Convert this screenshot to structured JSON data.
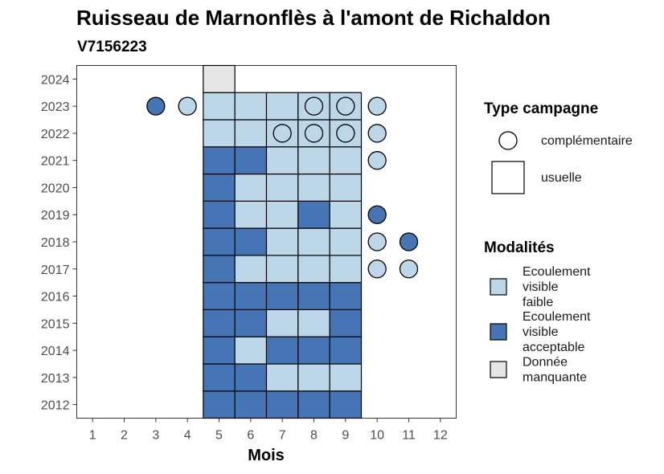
{
  "chart_data": {
    "type": "heatmap",
    "title": "Ruisseau de Marnonflès à l'amont de Richaldon",
    "subtitle": "V7156223",
    "xlabel": "Mois",
    "ylabel": "",
    "x_ticks": [
      "1",
      "2",
      "3",
      "4",
      "5",
      "6",
      "7",
      "8",
      "9",
      "10",
      "11",
      "12"
    ],
    "y_ticks": [
      "2012",
      "2013",
      "2014",
      "2015",
      "2016",
      "2017",
      "2018",
      "2019",
      "2020",
      "2021",
      "2022",
      "2023",
      "2024"
    ],
    "xlim": [
      0.5,
      12.5
    ],
    "ylim": [
      2011.5,
      2024.5
    ],
    "colors": {
      "faible": "#bcd7e8",
      "acceptable": "#4575b4",
      "manquante": "#e6e6e6"
    },
    "observations": [
      {
        "year": 2012,
        "month": 5,
        "campagne": "usuelle",
        "modalite": "acceptable"
      },
      {
        "year": 2012,
        "month": 6,
        "campagne": "usuelle",
        "modalite": "acceptable"
      },
      {
        "year": 2012,
        "month": 7,
        "campagne": "usuelle",
        "modalite": "acceptable"
      },
      {
        "year": 2012,
        "month": 8,
        "campagne": "usuelle",
        "modalite": "acceptable"
      },
      {
        "year": 2012,
        "month": 9,
        "campagne": "usuelle",
        "modalite": "acceptable"
      },
      {
        "year": 2013,
        "month": 5,
        "campagne": "usuelle",
        "modalite": "acceptable"
      },
      {
        "year": 2013,
        "month": 6,
        "campagne": "usuelle",
        "modalite": "acceptable"
      },
      {
        "year": 2013,
        "month": 7,
        "campagne": "usuelle",
        "modalite": "faible"
      },
      {
        "year": 2013,
        "month": 8,
        "campagne": "usuelle",
        "modalite": "faible"
      },
      {
        "year": 2013,
        "month": 9,
        "campagne": "usuelle",
        "modalite": "faible"
      },
      {
        "year": 2014,
        "month": 5,
        "campagne": "usuelle",
        "modalite": "acceptable"
      },
      {
        "year": 2014,
        "month": 6,
        "campagne": "usuelle",
        "modalite": "faible"
      },
      {
        "year": 2014,
        "month": 7,
        "campagne": "usuelle",
        "modalite": "acceptable"
      },
      {
        "year": 2014,
        "month": 8,
        "campagne": "usuelle",
        "modalite": "acceptable"
      },
      {
        "year": 2014,
        "month": 9,
        "campagne": "usuelle",
        "modalite": "acceptable"
      },
      {
        "year": 2015,
        "month": 5,
        "campagne": "usuelle",
        "modalite": "acceptable"
      },
      {
        "year": 2015,
        "month": 6,
        "campagne": "usuelle",
        "modalite": "acceptable"
      },
      {
        "year": 2015,
        "month": 7,
        "campagne": "usuelle",
        "modalite": "faible"
      },
      {
        "year": 2015,
        "month": 8,
        "campagne": "usuelle",
        "modalite": "faible"
      },
      {
        "year": 2015,
        "month": 9,
        "campagne": "usuelle",
        "modalite": "acceptable"
      },
      {
        "year": 2016,
        "month": 5,
        "campagne": "usuelle",
        "modalite": "acceptable"
      },
      {
        "year": 2016,
        "month": 6,
        "campagne": "usuelle",
        "modalite": "acceptable"
      },
      {
        "year": 2016,
        "month": 7,
        "campagne": "usuelle",
        "modalite": "acceptable"
      },
      {
        "year": 2016,
        "month": 8,
        "campagne": "usuelle",
        "modalite": "acceptable"
      },
      {
        "year": 2016,
        "month": 9,
        "campagne": "usuelle",
        "modalite": "acceptable"
      },
      {
        "year": 2017,
        "month": 5,
        "campagne": "usuelle",
        "modalite": "acceptable"
      },
      {
        "year": 2017,
        "month": 6,
        "campagne": "usuelle",
        "modalite": "faible"
      },
      {
        "year": 2017,
        "month": 7,
        "campagne": "usuelle",
        "modalite": "faible"
      },
      {
        "year": 2017,
        "month": 8,
        "campagne": "usuelle",
        "modalite": "faible"
      },
      {
        "year": 2017,
        "month": 9,
        "campagne": "usuelle",
        "modalite": "faible"
      },
      {
        "year": 2017,
        "month": 10,
        "campagne": "complémentaire",
        "modalite": "faible"
      },
      {
        "year": 2017,
        "month": 11,
        "campagne": "complémentaire",
        "modalite": "faible"
      },
      {
        "year": 2018,
        "month": 5,
        "campagne": "usuelle",
        "modalite": "acceptable"
      },
      {
        "year": 2018,
        "month": 6,
        "campagne": "usuelle",
        "modalite": "acceptable"
      },
      {
        "year": 2018,
        "month": 7,
        "campagne": "usuelle",
        "modalite": "faible"
      },
      {
        "year": 2018,
        "month": 8,
        "campagne": "usuelle",
        "modalite": "faible"
      },
      {
        "year": 2018,
        "month": 9,
        "campagne": "usuelle",
        "modalite": "faible"
      },
      {
        "year": 2018,
        "month": 10,
        "campagne": "complémentaire",
        "modalite": "faible"
      },
      {
        "year": 2018,
        "month": 11,
        "campagne": "complémentaire",
        "modalite": "acceptable"
      },
      {
        "year": 2019,
        "month": 5,
        "campagne": "usuelle",
        "modalite": "acceptable"
      },
      {
        "year": 2019,
        "month": 6,
        "campagne": "usuelle",
        "modalite": "faible"
      },
      {
        "year": 2019,
        "month": 7,
        "campagne": "usuelle",
        "modalite": "faible"
      },
      {
        "year": 2019,
        "month": 8,
        "campagne": "usuelle",
        "modalite": "acceptable"
      },
      {
        "year": 2019,
        "month": 9,
        "campagne": "usuelle",
        "modalite": "faible"
      },
      {
        "year": 2019,
        "month": 10,
        "campagne": "complémentaire",
        "modalite": "acceptable"
      },
      {
        "year": 2020,
        "month": 5,
        "campagne": "usuelle",
        "modalite": "acceptable"
      },
      {
        "year": 2020,
        "month": 6,
        "campagne": "usuelle",
        "modalite": "faible"
      },
      {
        "year": 2020,
        "month": 7,
        "campagne": "usuelle",
        "modalite": "faible"
      },
      {
        "year": 2020,
        "month": 8,
        "campagne": "usuelle",
        "modalite": "faible"
      },
      {
        "year": 2020,
        "month": 9,
        "campagne": "usuelle",
        "modalite": "faible"
      },
      {
        "year": 2021,
        "month": 5,
        "campagne": "usuelle",
        "modalite": "acceptable"
      },
      {
        "year": 2021,
        "month": 6,
        "campagne": "usuelle",
        "modalite": "acceptable"
      },
      {
        "year": 2021,
        "month": 7,
        "campagne": "usuelle",
        "modalite": "faible"
      },
      {
        "year": 2021,
        "month": 8,
        "campagne": "usuelle",
        "modalite": "faible"
      },
      {
        "year": 2021,
        "month": 9,
        "campagne": "usuelle",
        "modalite": "faible"
      },
      {
        "year": 2021,
        "month": 10,
        "campagne": "complémentaire",
        "modalite": "faible"
      },
      {
        "year": 2022,
        "month": 5,
        "campagne": "usuelle",
        "modalite": "faible"
      },
      {
        "year": 2022,
        "month": 6,
        "campagne": "usuelle",
        "modalite": "faible"
      },
      {
        "year": 2022,
        "month": 7,
        "campagne": "usuelle",
        "modalite": "faible"
      },
      {
        "year": 2022,
        "month": 8,
        "campagne": "usuelle",
        "modalite": "faible"
      },
      {
        "year": 2022,
        "month": 9,
        "campagne": "usuelle",
        "modalite": "faible"
      },
      {
        "year": 2022,
        "month": 7,
        "campagne": "complémentaire",
        "modalite": "faible"
      },
      {
        "year": 2022,
        "month": 8,
        "campagne": "complémentaire",
        "modalite": "faible"
      },
      {
        "year": 2022,
        "month": 9,
        "campagne": "complémentaire",
        "modalite": "faible"
      },
      {
        "year": 2022,
        "month": 10,
        "campagne": "complémentaire",
        "modalite": "faible"
      },
      {
        "year": 2023,
        "month": 5,
        "campagne": "usuelle",
        "modalite": "faible"
      },
      {
        "year": 2023,
        "month": 6,
        "campagne": "usuelle",
        "modalite": "faible"
      },
      {
        "year": 2023,
        "month": 7,
        "campagne": "usuelle",
        "modalite": "faible"
      },
      {
        "year": 2023,
        "month": 8,
        "campagne": "usuelle",
        "modalite": "faible"
      },
      {
        "year": 2023,
        "month": 9,
        "campagne": "usuelle",
        "modalite": "faible"
      },
      {
        "year": 2023,
        "month": 3,
        "campagne": "complémentaire",
        "modalite": "acceptable"
      },
      {
        "year": 2023,
        "month": 4,
        "campagne": "complémentaire",
        "modalite": "faible"
      },
      {
        "year": 2023,
        "month": 8,
        "campagne": "complémentaire",
        "modalite": "faible"
      },
      {
        "year": 2023,
        "month": 9,
        "campagne": "complémentaire",
        "modalite": "faible"
      },
      {
        "year": 2023,
        "month": 10,
        "campagne": "complémentaire",
        "modalite": "faible"
      },
      {
        "year": 2024,
        "month": 5,
        "campagne": "usuelle",
        "modalite": "manquante"
      }
    ],
    "legend": {
      "placement": "right",
      "type_title": "Type campagne",
      "type_items": [
        {
          "key": "complémentaire",
          "label": "complémentaire",
          "shape": "circle"
        },
        {
          "key": "usuelle",
          "label": "usuelle",
          "shape": "square"
        }
      ],
      "modalite_title": "Modalités",
      "modalite_items": [
        {
          "key": "faible",
          "lines": [
            "Ecoulement",
            "visible",
            "faible"
          ]
        },
        {
          "key": "acceptable",
          "lines": [
            "Ecoulement",
            "visible",
            "acceptable"
          ]
        },
        {
          "key": "manquante",
          "lines": [
            "Donnée",
            "manquante"
          ]
        }
      ]
    },
    "grid": false
  }
}
